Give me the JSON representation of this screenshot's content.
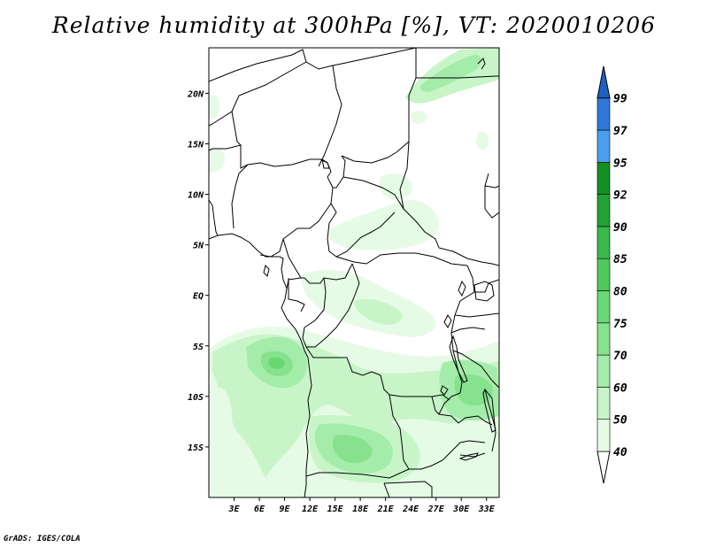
{
  "title": "Relative humidity at 300hPa [%], VT: 2020010206",
  "credit": "GrADS: IGES/COLA",
  "map": {
    "lon_range": [
      0,
      34.5
    ],
    "lat_range": [
      -20,
      24.5
    ],
    "lat_ticks": [
      {
        "value": 20,
        "label": "20N"
      },
      {
        "value": 15,
        "label": "15N"
      },
      {
        "value": 10,
        "label": "10N"
      },
      {
        "value": 5,
        "label": "5N"
      },
      {
        "value": 0,
        "label": "EQ"
      },
      {
        "value": -5,
        "label": "5S"
      },
      {
        "value": -10,
        "label": "10S"
      },
      {
        "value": -15,
        "label": "15S"
      }
    ],
    "lon_ticks": [
      {
        "value": 3,
        "label": "3E"
      },
      {
        "value": 6,
        "label": "6E"
      },
      {
        "value": 9,
        "label": "9E"
      },
      {
        "value": 12,
        "label": "12E"
      },
      {
        "value": 15,
        "label": "15E"
      },
      {
        "value": 18,
        "label": "18E"
      },
      {
        "value": 21,
        "label": "21E"
      },
      {
        "value": 24,
        "label": "24E"
      },
      {
        "value": 27,
        "label": "27E"
      },
      {
        "value": 30,
        "label": "30E"
      },
      {
        "value": 33,
        "label": "33E"
      }
    ]
  },
  "colorbar": {
    "levels": [
      "40",
      "50",
      "60",
      "70",
      "75",
      "80",
      "85",
      "90",
      "92",
      "95",
      "97",
      "99"
    ],
    "colors": [
      "#ffffff",
      "#e6fbe6",
      "#c8f5c8",
      "#a4ecaa",
      "#86e28c",
      "#6ad872",
      "#4fc95a",
      "#3ab84a",
      "#22a234",
      "#138f22",
      "#4a9ff0",
      "#2f78d8",
      "#1e5fc0"
    ]
  }
}
